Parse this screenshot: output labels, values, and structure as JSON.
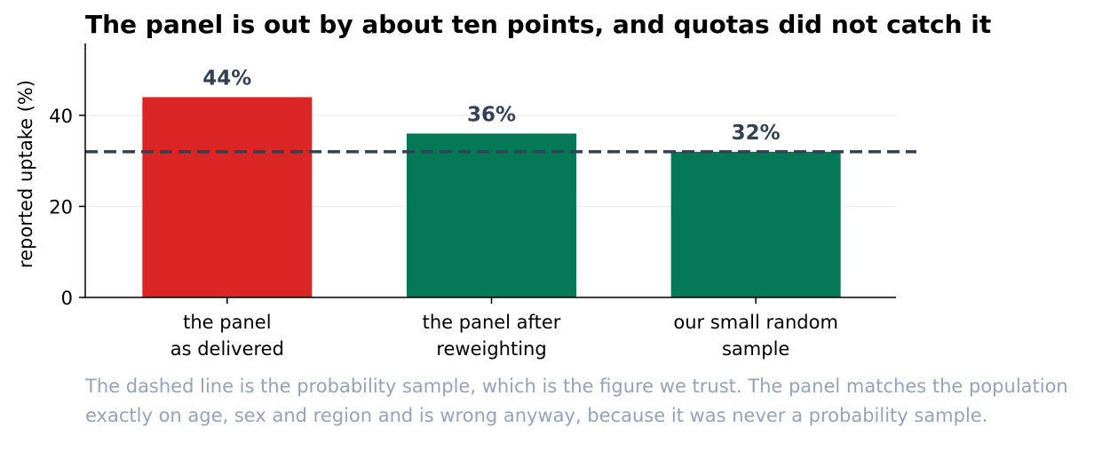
{
  "chart_data": {
    "type": "bar",
    "title": "The panel is out by about ten points, and quotas did not catch it",
    "ylabel": "reported uptake (%)",
    "xlabel": "",
    "categories": [
      [
        "the panel",
        "as delivered"
      ],
      [
        "the panel after",
        "reweighting"
      ],
      [
        "our small random",
        "sample"
      ]
    ],
    "values": [
      44,
      36,
      32
    ],
    "value_labels": [
      "44%",
      "36%",
      "32%"
    ],
    "bar_colors": [
      "#dc2626",
      "#047857",
      "#047857"
    ],
    "ylim": [
      0,
      55
    ],
    "yticks": [
      0,
      20,
      40
    ],
    "reference_line": {
      "value": 32,
      "style": "dashed",
      "color": "#334155"
    },
    "grid": "horizontal",
    "legend": "none"
  },
  "caption": "The dashed line is the probability sample, which is the figure we trust. The panel matches the population exactly on age, sex and region and is wrong anyway, because it was never a probability sample.",
  "colors": {
    "highlight": "#dc2626",
    "normal": "#047857",
    "label_text": "#334155",
    "caption_text": "#94a3b8",
    "grid": "#eeeeee"
  }
}
